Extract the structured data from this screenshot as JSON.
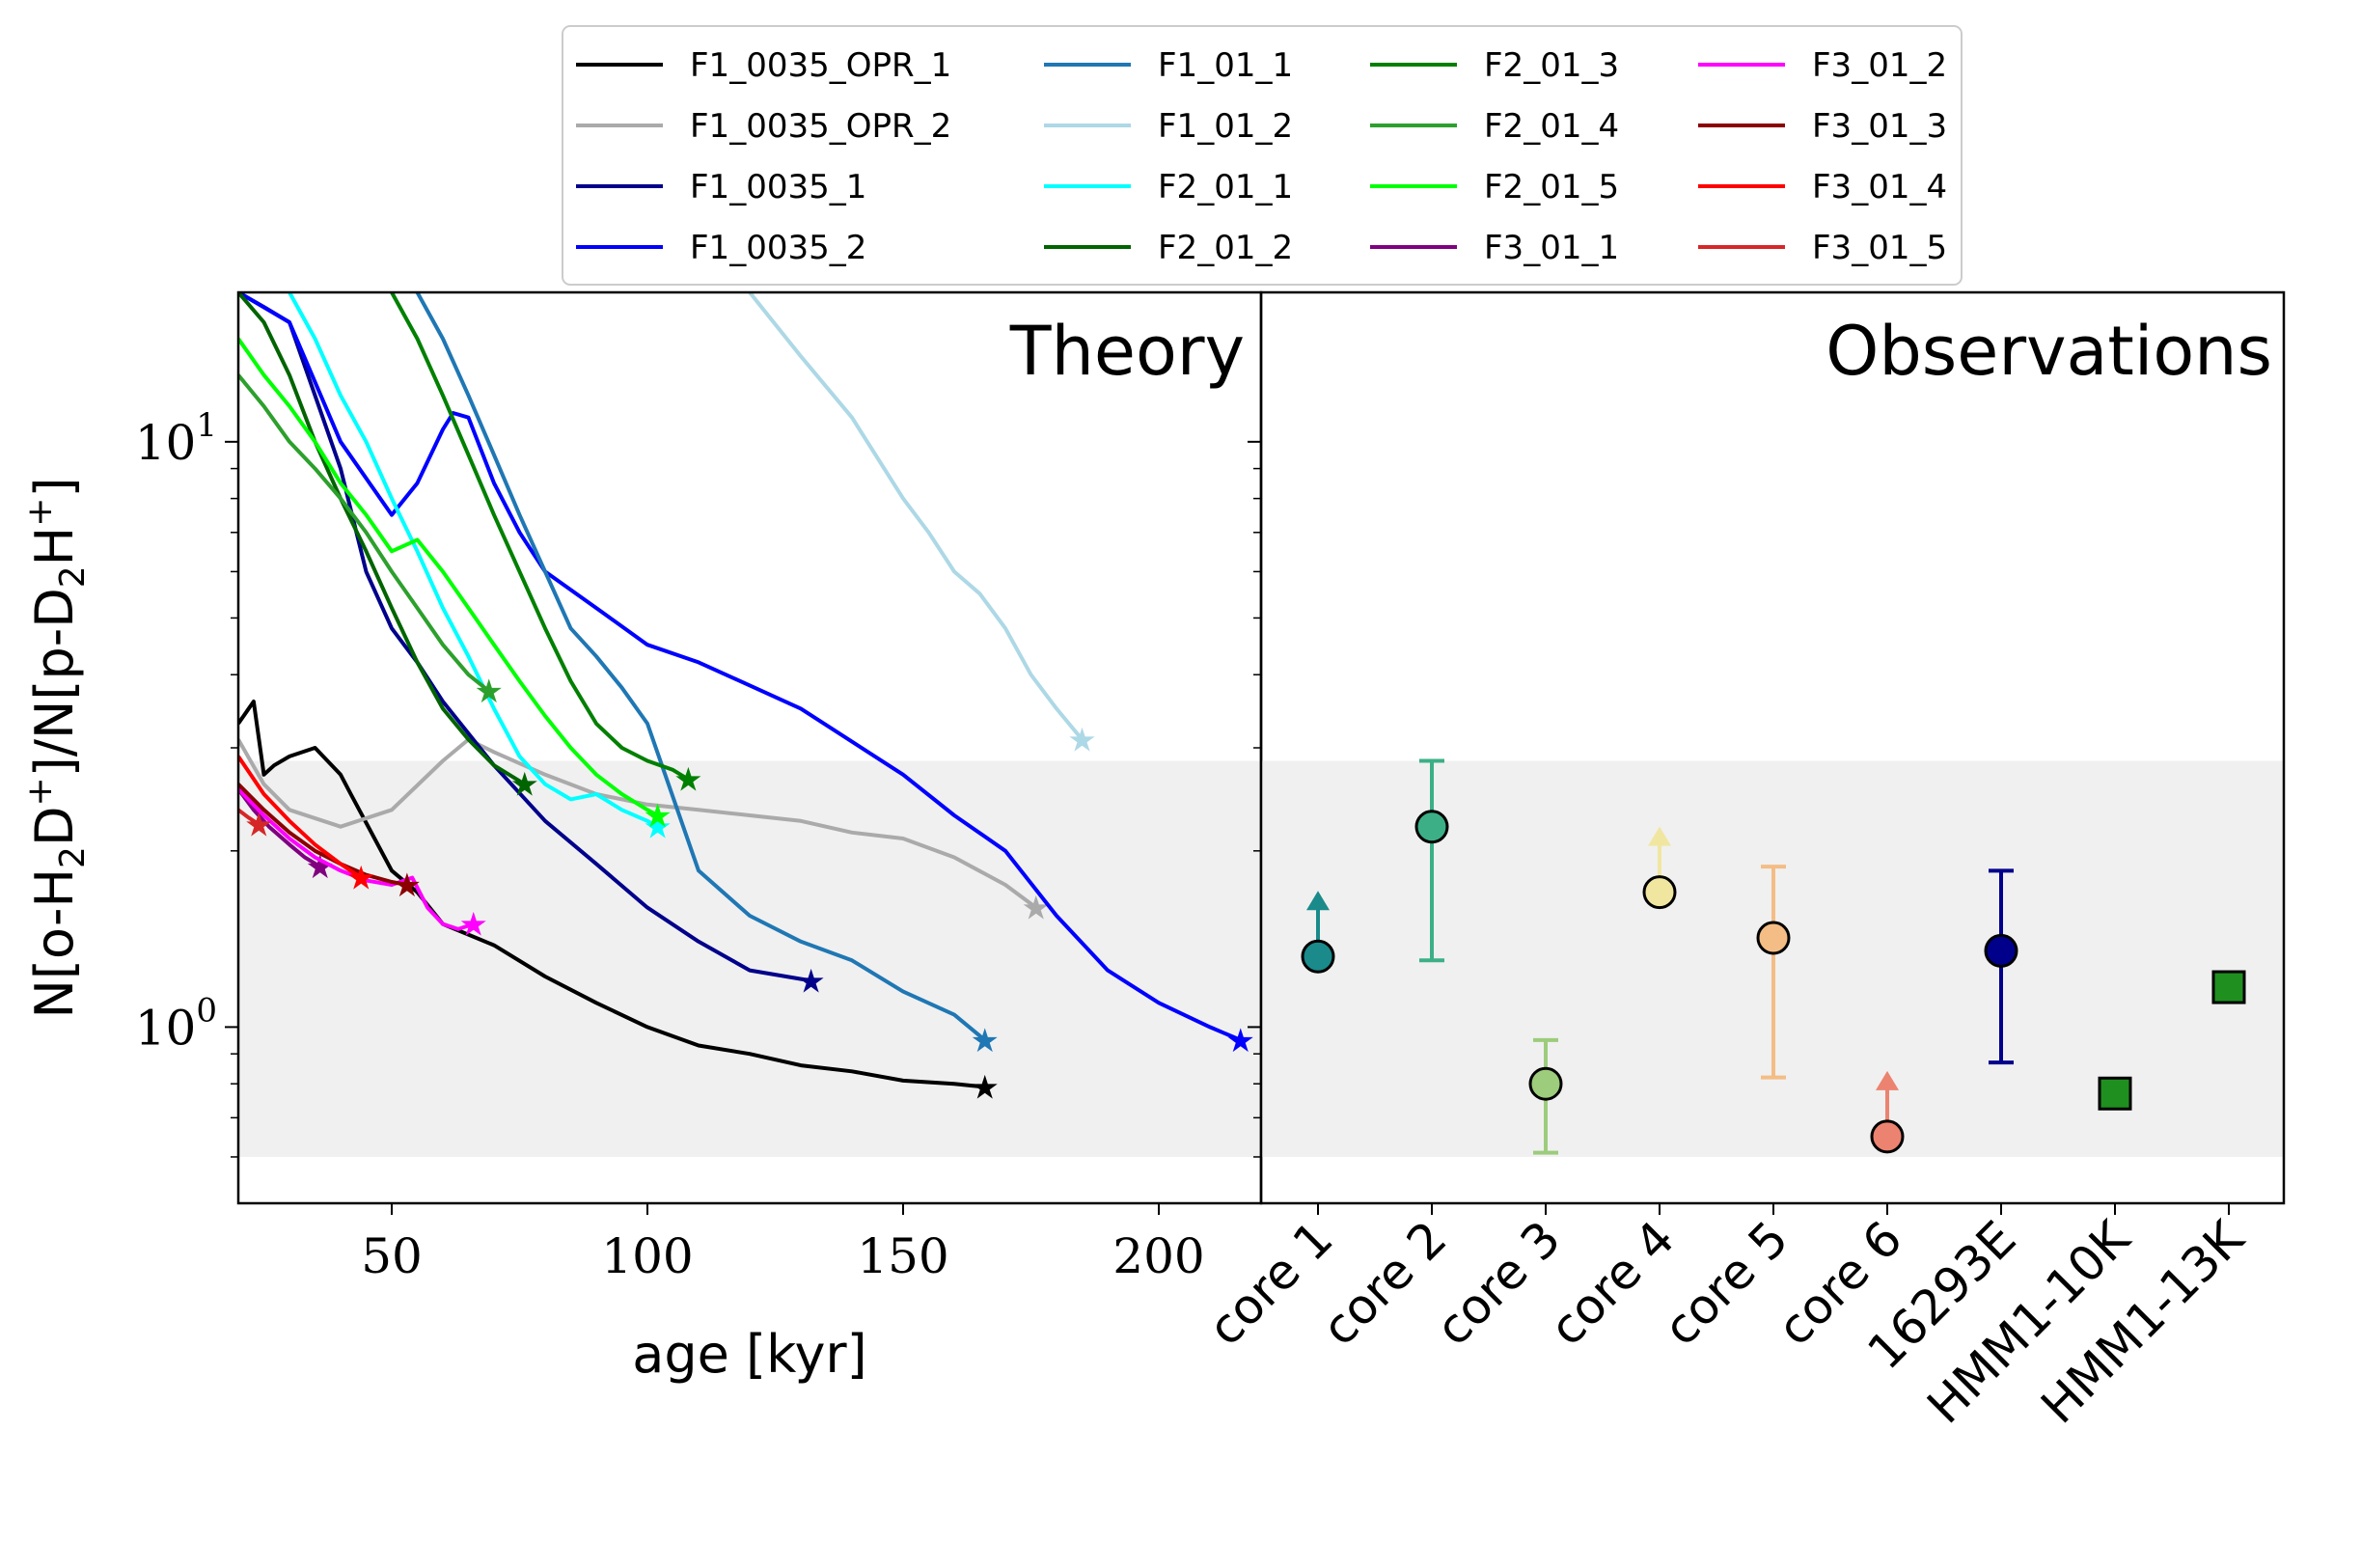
{
  "chart_data": {
    "type": "line",
    "legend": {
      "placement": "top-center",
      "columns": 4
    },
    "shared_y": {
      "label": "N[o-H2D+]/N[p-D2H+]",
      "scale": "log",
      "ylim": [
        0.5,
        18
      ],
      "ticks": [
        {
          "value": 1,
          "label": "10^0"
        },
        {
          "value": 10,
          "label": "10^1"
        }
      ]
    },
    "observed_range_band": {
      "low": 0.6,
      "high": 2.85,
      "color": "#f0f0f0"
    },
    "panels": [
      {
        "title": "Theory",
        "type": "line",
        "xlabel": "age [kyr]",
        "xlim": [
          20,
          220
        ],
        "xticks": [
          50,
          100,
          150,
          200
        ],
        "series": [
          {
            "name": "F1_0035_OPR_1",
            "color": "#000000",
            "x": [
              20,
              23,
              25,
              27,
              30,
              35,
              40,
              42,
              50,
              55,
              60,
              70,
              80,
              90,
              100,
              110,
              120,
              130,
              140,
              150,
              160,
              166
            ],
            "y": [
              3.3,
              3.6,
              2.7,
              2.8,
              2.9,
              3.0,
              2.7,
              2.5,
              1.85,
              1.7,
              1.5,
              1.38,
              1.22,
              1.1,
              1.0,
              0.93,
              0.9,
              0.86,
              0.84,
              0.81,
              0.8,
              0.79
            ]
          },
          {
            "name": "F1_0035_OPR_2",
            "color": "#aaaaaa",
            "x": [
              20,
              25,
              30,
              40,
              50,
              60,
              65,
              70,
              80,
              90,
              100,
              110,
              120,
              130,
              140,
              150,
              160,
              170,
              176
            ],
            "y": [
              3.1,
              2.6,
              2.35,
              2.2,
              2.35,
              2.85,
              3.1,
              2.95,
              2.7,
              2.5,
              2.4,
              2.35,
              2.3,
              2.25,
              2.15,
              2.1,
              1.95,
              1.75,
              1.6
            ]
          },
          {
            "name": "F1_0035_1",
            "color": "#00008b",
            "x": [
              20,
              25,
              30,
              35,
              40,
              45,
              50,
              55,
              60,
              70,
              80,
              90,
              100,
              110,
              120,
              132
            ],
            "y": [
              18,
              17,
              16,
              12,
              9,
              6,
              4.8,
              4.2,
              3.6,
              2.8,
              2.25,
              1.9,
              1.6,
              1.4,
              1.25,
              1.2
            ]
          },
          {
            "name": "F1_0035_2",
            "color": "#0000ff",
            "x": [
              20,
              30,
              40,
              50,
              55,
              60,
              62,
              65,
              70,
              75,
              80,
              90,
              100,
              110,
              130,
              150,
              160,
              170,
              180,
              190,
              200,
              210,
              216
            ],
            "y": [
              18,
              16,
              10,
              7.5,
              8.5,
              10.5,
              11.2,
              11,
              8.5,
              7,
              6,
              5.2,
              4.5,
              4.2,
              3.5,
              2.7,
              2.3,
              2.0,
              1.55,
              1.25,
              1.1,
              1.0,
              0.95
            ]
          },
          {
            "name": "F1_01_1",
            "color": "#1f77b4",
            "x": [
              55,
              60,
              65,
              70,
              75,
              80,
              85,
              90,
              95,
              100,
              110,
              120,
              130,
              140,
              150,
              160,
              166
            ],
            "y": [
              18,
              15,
              12,
              9.5,
              7.5,
              6,
              4.8,
              4.3,
              3.8,
              3.3,
              1.85,
              1.55,
              1.4,
              1.3,
              1.15,
              1.05,
              0.95
            ]
          },
          {
            "name": "F1_01_2",
            "color": "#add8e6",
            "x": [
              120,
              130,
              140,
              150,
              155,
              160,
              165,
              170,
              175,
              180,
              185
            ],
            "y": [
              18,
              14,
              11,
              8,
              7,
              6,
              5.5,
              4.8,
              4.0,
              3.5,
              3.1
            ]
          },
          {
            "name": "F2_01_1",
            "color": "#00ffff",
            "x": [
              30,
              35,
              40,
              45,
              50,
              55,
              60,
              65,
              70,
              75,
              80,
              85,
              90,
              95,
              100,
              102
            ],
            "y": [
              18,
              15,
              12,
              10,
              8,
              6.5,
              5.2,
              4.3,
              3.5,
              2.9,
              2.6,
              2.45,
              2.5,
              2.35,
              2.25,
              2.2
            ]
          },
          {
            "name": "F2_01_2",
            "color": "#006400",
            "x": [
              20,
              25,
              30,
              35,
              40,
              45,
              50,
              55,
              60,
              65,
              70,
              76
            ],
            "y": [
              18,
              16,
              13,
              10,
              8,
              6.5,
              5.2,
              4.2,
              3.5,
              3.1,
              2.8,
              2.6
            ]
          },
          {
            "name": "F2_01_3",
            "color": "#008000",
            "x": [
              50,
              55,
              60,
              65,
              70,
              75,
              80,
              85,
              90,
              95,
              100,
              105,
              108
            ],
            "y": [
              18,
              15,
              12,
              9.5,
              7.5,
              6,
              4.8,
              3.9,
              3.3,
              3.0,
              2.85,
              2.75,
              2.65
            ]
          },
          {
            "name": "F2_01_4",
            "color": "#2ca02c",
            "x": [
              20,
              25,
              30,
              35,
              40,
              45,
              50,
              55,
              60,
              65,
              69
            ],
            "y": [
              13,
              11.5,
              10,
              9,
              8,
              7,
              6,
              5.2,
              4.5,
              4.0,
              3.75
            ]
          },
          {
            "name": "F2_01_5",
            "color": "#00ff00",
            "x": [
              20,
              25,
              30,
              35,
              40,
              45,
              50,
              55,
              60,
              65,
              70,
              75,
              80,
              85,
              90,
              95,
              100,
              102
            ],
            "y": [
              15,
              13,
              11.5,
              10,
              8.5,
              7.5,
              6.5,
              6.8,
              6.0,
              5.2,
              4.5,
              3.9,
              3.4,
              3.0,
              2.7,
              2.5,
              2.35,
              2.3
            ]
          },
          {
            "name": "F3_01_1",
            "color": "#800080",
            "x": [
              20,
              23,
              26,
              30,
              33,
              36
            ],
            "y": [
              2.55,
              2.35,
              2.2,
              2.05,
              1.95,
              1.88
            ]
          },
          {
            "name": "F3_01_2",
            "color": "#ff00ff",
            "x": [
              20,
              25,
              30,
              35,
              40,
              45,
              50,
              54,
              57,
              60,
              63,
              66
            ],
            "y": [
              2.55,
              2.3,
              2.1,
              1.95,
              1.85,
              1.78,
              1.75,
              1.8,
              1.6,
              1.5,
              1.47,
              1.5
            ]
          },
          {
            "name": "F3_01_3",
            "color": "#8b0000",
            "x": [
              20,
              25,
              30,
              35,
              40,
              45,
              50,
              53
            ],
            "y": [
              2.6,
              2.35,
              2.15,
              2.0,
              1.9,
              1.82,
              1.77,
              1.75
            ]
          },
          {
            "name": "F3_01_4",
            "color": "#ff0000",
            "x": [
              20,
              25,
              30,
              35,
              40,
              44
            ],
            "y": [
              2.9,
              2.5,
              2.25,
              2.05,
              1.9,
              1.8
            ]
          },
          {
            "name": "F3_01_5",
            "color": "#d62728",
            "x": [
              20,
              22,
              24
            ],
            "y": [
              2.35,
              2.28,
              2.22
            ]
          }
        ]
      },
      {
        "title": "Observations",
        "type": "scatter",
        "categories": [
          "core 1",
          "core 2",
          "core 3",
          "core 4",
          "core 5",
          "core 6",
          "16293E",
          "HMM1-10K",
          "HMM1-13K"
        ],
        "points": [
          {
            "label": "core 1",
            "value": 1.32,
            "lower_limit": true,
            "color": "#1a8a8a",
            "marker": "circle"
          },
          {
            "label": "core 2",
            "value": 2.2,
            "err_low": 1.3,
            "err_high": 2.85,
            "color": "#3caf86",
            "marker": "circle"
          },
          {
            "label": "core 3",
            "value": 0.8,
            "err_low": 0.61,
            "err_high": 0.95,
            "color": "#9ccc7c",
            "marker": "circle"
          },
          {
            "label": "core 4",
            "value": 1.7,
            "lower_limit": true,
            "color": "#f0e6a0",
            "marker": "circle"
          },
          {
            "label": "core 5",
            "value": 1.42,
            "err_low": 0.82,
            "err_high": 1.88,
            "color": "#f3bd85",
            "marker": "circle"
          },
          {
            "label": "core 6",
            "value": 0.65,
            "lower_limit": true,
            "color": "#ec8370",
            "marker": "circle"
          },
          {
            "label": "16293E",
            "value": 1.35,
            "err_low": 0.87,
            "err_high": 1.85,
            "color": "#00008b",
            "marker": "circle"
          },
          {
            "label": "HMM1-10K",
            "value": 0.77,
            "color": "#1f8f1f",
            "marker": "square"
          },
          {
            "label": "HMM1-13K",
            "value": 1.17,
            "color": "#1f8f1f",
            "marker": "square"
          }
        ]
      }
    ]
  }
}
